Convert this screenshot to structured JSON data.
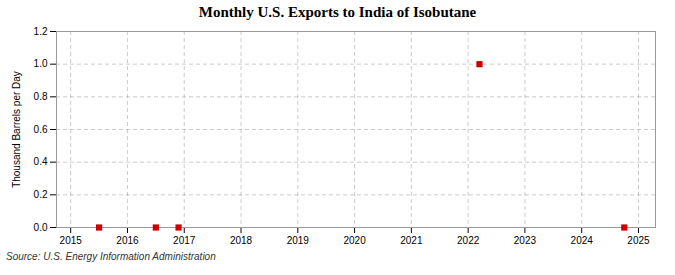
{
  "chart_data": {
    "type": "scatter",
    "title": "Monthly U.S. Exports to India of Isobutane",
    "ylabel": "Thousand Barrels per Day",
    "source": "Source: U.S. Energy Information Administration",
    "x": [
      2015.5,
      2016.5,
      2016.9,
      2022.2,
      2024.75
    ],
    "values": [
      0.0,
      0.0,
      0.0,
      1.0,
      0.0
    ],
    "color": "#cc0000",
    "marker": "square",
    "xlim": [
      2014.75,
      2025.3
    ],
    "ylim": [
      0.0,
      1.2
    ],
    "xticks": [
      2015,
      2016,
      2017,
      2018,
      2019,
      2020,
      2021,
      2022,
      2023,
      2024,
      2025
    ],
    "yticks": [
      {
        "value": 0.0,
        "label": "0.0"
      },
      0.2,
      0.4,
      0.6,
      0.8,
      {
        "value": 1.0,
        "label": "1.0"
      },
      1.2
    ],
    "grid": true
  }
}
